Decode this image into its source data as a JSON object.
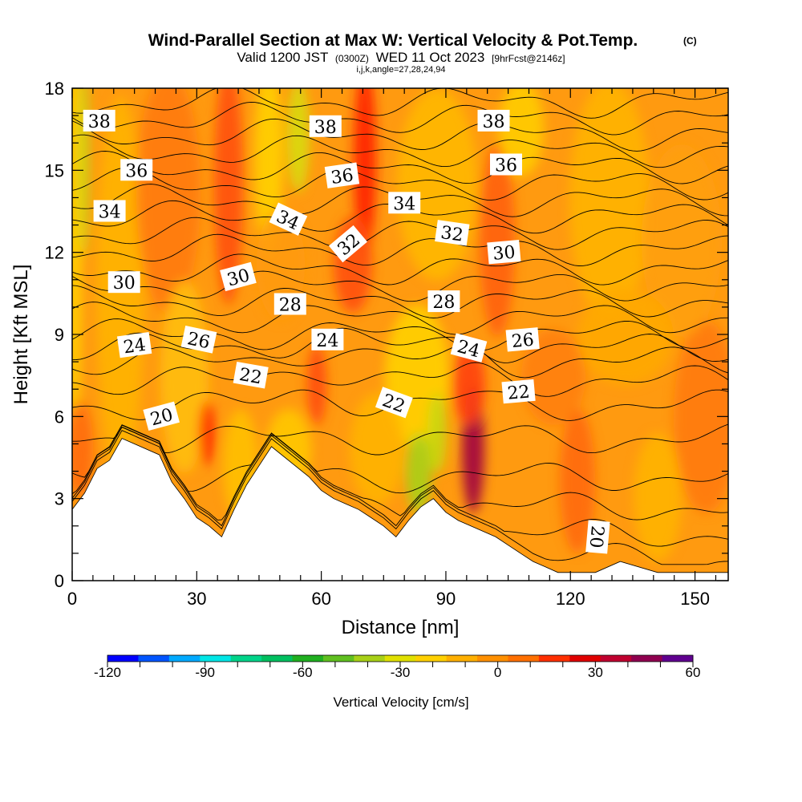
{
  "chart_data": {
    "type": "heatmap",
    "title": "Wind-Parallel Section at Max W: Vertical Velocity & Pot.Temp.",
    "title_mark": "(C)",
    "subtitle_valid": "Valid 1200 JST",
    "subtitle_utc": "(0300Z)",
    "subtitle_date": "WED 11 Oct 2023",
    "subtitle_fcst": "[9hrFcst@2146z]",
    "subtitle_indices": "i,j,k,angle=27,28,24,94",
    "xlabel": "Distance [nm]",
    "ylabel": "Height [Kft MSL]",
    "xlim": [
      0,
      158
    ],
    "ylim": [
      0,
      18
    ],
    "x_ticks": [
      0,
      30,
      60,
      90,
      120,
      150
    ],
    "y_ticks": [
      0,
      3,
      6,
      9,
      12,
      15,
      18
    ],
    "colorbar": {
      "label": "Vertical Velocity [cm/s]",
      "min": -120,
      "max": 60,
      "step": 10,
      "tick_values": [
        -120,
        -90,
        -60,
        -30,
        0,
        30,
        60
      ],
      "colors": [
        "#0000ff",
        "#0055ff",
        "#00aaff",
        "#00e6e6",
        "#00d48a",
        "#00c060",
        "#20b020",
        "#60c020",
        "#a8d018",
        "#e0e000",
        "#ffd000",
        "#ffb000",
        "#ff9000",
        "#ff7000",
        "#ff3000",
        "#e00000",
        "#c00030",
        "#900050",
        "#600090"
      ]
    },
    "terrain_top_kft": [
      [
        0,
        2.6
      ],
      [
        3,
        3.2
      ],
      [
        6,
        4.1
      ],
      [
        9,
        4.4
      ],
      [
        12,
        5.2
      ],
      [
        21,
        4.6
      ],
      [
        24,
        3.6
      ],
      [
        27,
        3.0
      ],
      [
        30,
        2.3
      ],
      [
        33,
        2.0
      ],
      [
        36,
        1.6
      ],
      [
        39,
        2.6
      ],
      [
        42,
        3.5
      ],
      [
        45,
        4.2
      ],
      [
        48,
        4.9
      ],
      [
        57,
        3.8
      ],
      [
        60,
        3.3
      ],
      [
        63,
        3.0
      ],
      [
        66,
        2.8
      ],
      [
        69,
        2.6
      ],
      [
        72,
        2.3
      ],
      [
        75,
        2.0
      ],
      [
        78,
        1.6
      ],
      [
        81,
        2.2
      ],
      [
        84,
        2.7
      ],
      [
        87,
        3.0
      ],
      [
        90,
        2.5
      ],
      [
        93,
        2.2
      ],
      [
        96,
        2.0
      ],
      [
        102,
        1.6
      ],
      [
        105,
        1.3
      ],
      [
        108,
        1.0
      ],
      [
        111,
        0.7
      ],
      [
        114,
        0.5
      ],
      [
        117,
        0.3
      ],
      [
        120,
        0.3
      ],
      [
        126,
        0.3
      ],
      [
        132,
        0.7
      ],
      [
        141,
        0.3
      ],
      [
        158,
        0.3
      ]
    ],
    "theta_labels": [
      {
        "text": "38",
        "x": 6.5,
        "y": 16.8,
        "angle": 0
      },
      {
        "text": "36",
        "x": 15.5,
        "y": 15.0,
        "angle": 0
      },
      {
        "text": "34",
        "x": 9.0,
        "y": 13.5,
        "angle": 0
      },
      {
        "text": "30",
        "x": 12.5,
        "y": 10.9,
        "angle": 0
      },
      {
        "text": "24",
        "x": 15.0,
        "y": 8.6,
        "angle": -8
      },
      {
        "text": "26",
        "x": 30.5,
        "y": 8.8,
        "angle": 12
      },
      {
        "text": "20",
        "x": 21.5,
        "y": 6.0,
        "angle": -15
      },
      {
        "text": "30",
        "x": 40.0,
        "y": 11.1,
        "angle": -15
      },
      {
        "text": "34",
        "x": 52.0,
        "y": 13.2,
        "angle": 25
      },
      {
        "text": "22",
        "x": 43.0,
        "y": 7.5,
        "angle": 10
      },
      {
        "text": "28",
        "x": 52.5,
        "y": 10.1,
        "angle": 0
      },
      {
        "text": "38",
        "x": 61.0,
        "y": 16.6,
        "angle": 0
      },
      {
        "text": "36",
        "x": 65.0,
        "y": 14.8,
        "angle": -8
      },
      {
        "text": "32",
        "x": 66.5,
        "y": 12.3,
        "angle": -40
      },
      {
        "text": "24",
        "x": 61.5,
        "y": 8.8,
        "angle": 0
      },
      {
        "text": "34",
        "x": 80.0,
        "y": 13.8,
        "angle": 0
      },
      {
        "text": "22",
        "x": 77.5,
        "y": 6.5,
        "angle": 20
      },
      {
        "text": "32",
        "x": 91.5,
        "y": 12.7,
        "angle": 8
      },
      {
        "text": "28",
        "x": 89.5,
        "y": 10.2,
        "angle": 0
      },
      {
        "text": "24",
        "x": 95.5,
        "y": 8.5,
        "angle": 15
      },
      {
        "text": "38",
        "x": 101.5,
        "y": 16.8,
        "angle": 0
      },
      {
        "text": "36",
        "x": 104.5,
        "y": 15.2,
        "angle": 0
      },
      {
        "text": "30",
        "x": 104.0,
        "y": 12.0,
        "angle": -5
      },
      {
        "text": "26",
        "x": 108.5,
        "y": 8.8,
        "angle": -5
      },
      {
        "text": "22",
        "x": 107.5,
        "y": 6.9,
        "angle": -5
      },
      {
        "text": "20",
        "x": 126.5,
        "y": 1.6,
        "angle": 95
      }
    ]
  }
}
